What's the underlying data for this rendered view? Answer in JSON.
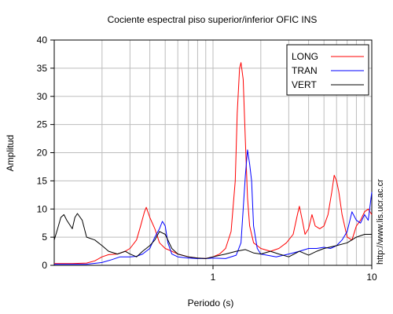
{
  "chart_data": {
    "type": "line",
    "title": "Cociente espectral piso superior/inferior  OFIC INS",
    "xlabel": "Periodo (s)",
    "ylabel": "Amplitud",
    "x_scale": "log",
    "xlim": [
      0.1,
      10
    ],
    "ylim": [
      0,
      40
    ],
    "grid": true,
    "x_ticks": [
      {
        "value": 1,
        "label": "1"
      },
      {
        "value": 10,
        "label": "10"
      }
    ],
    "y_ticks": [
      0,
      5,
      10,
      15,
      20,
      25,
      30,
      35,
      40
    ],
    "legend_position": "top-right",
    "series": [
      {
        "name": "LONG",
        "color": "#ff0000",
        "points": [
          [
            0.1,
            0.3
          ],
          [
            0.13,
            0.3
          ],
          [
            0.16,
            0.4
          ],
          [
            0.18,
            0.8
          ],
          [
            0.2,
            1.5
          ],
          [
            0.22,
            1.9
          ],
          [
            0.25,
            2.0
          ],
          [
            0.28,
            2.5
          ],
          [
            0.3,
            3.0
          ],
          [
            0.33,
            4.5
          ],
          [
            0.35,
            7.0
          ],
          [
            0.37,
            9.5
          ],
          [
            0.38,
            10.3
          ],
          [
            0.4,
            8.5
          ],
          [
            0.43,
            6.5
          ],
          [
            0.46,
            4.0
          ],
          [
            0.5,
            3.0
          ],
          [
            0.55,
            2.5
          ],
          [
            0.6,
            2.0
          ],
          [
            0.7,
            1.5
          ],
          [
            0.8,
            1.3
          ],
          [
            0.9,
            1.2
          ],
          [
            1.0,
            1.5
          ],
          [
            1.1,
            2.0
          ],
          [
            1.2,
            3.0
          ],
          [
            1.3,
            6.0
          ],
          [
            1.38,
            15.0
          ],
          [
            1.42,
            27.0
          ],
          [
            1.47,
            35.0
          ],
          [
            1.5,
            36.0
          ],
          [
            1.55,
            33.0
          ],
          [
            1.6,
            22.0
          ],
          [
            1.65,
            12.0
          ],
          [
            1.7,
            7.0
          ],
          [
            1.8,
            4.0
          ],
          [
            1.9,
            3.5
          ],
          [
            2.0,
            3.0
          ],
          [
            2.3,
            2.5
          ],
          [
            2.6,
            3.0
          ],
          [
            2.9,
            4.0
          ],
          [
            3.2,
            5.5
          ],
          [
            3.4,
            9.0
          ],
          [
            3.5,
            10.5
          ],
          [
            3.65,
            8.0
          ],
          [
            3.8,
            5.5
          ],
          [
            4.0,
            6.5
          ],
          [
            4.2,
            9.0
          ],
          [
            4.4,
            7.0
          ],
          [
            4.7,
            6.5
          ],
          [
            5.0,
            7.0
          ],
          [
            5.3,
            9.0
          ],
          [
            5.6,
            13.0
          ],
          [
            5.8,
            16.0
          ],
          [
            6.0,
            15.0
          ],
          [
            6.2,
            13.0
          ],
          [
            6.5,
            9.0
          ],
          [
            7.0,
            5.0
          ],
          [
            7.5,
            4.5
          ],
          [
            8.0,
            7.0
          ],
          [
            8.5,
            8.0
          ],
          [
            9.0,
            9.5
          ],
          [
            9.5,
            10.0
          ],
          [
            10.0,
            9.0
          ]
        ]
      },
      {
        "name": "TRAN",
        "color": "#0000ff",
        "points": [
          [
            0.1,
            0.2
          ],
          [
            0.13,
            0.2
          ],
          [
            0.16,
            0.2
          ],
          [
            0.2,
            0.5
          ],
          [
            0.23,
            1.0
          ],
          [
            0.26,
            1.5
          ],
          [
            0.3,
            1.5
          ],
          [
            0.33,
            1.6
          ],
          [
            0.36,
            2.0
          ],
          [
            0.4,
            3.0
          ],
          [
            0.43,
            5.0
          ],
          [
            0.46,
            6.5
          ],
          [
            0.48,
            7.8
          ],
          [
            0.5,
            7.0
          ],
          [
            0.52,
            4.0
          ],
          [
            0.55,
            2.0
          ],
          [
            0.6,
            1.5
          ],
          [
            0.7,
            1.3
          ],
          [
            0.8,
            1.2
          ],
          [
            0.9,
            1.2
          ],
          [
            1.0,
            1.3
          ],
          [
            1.2,
            1.2
          ],
          [
            1.4,
            1.8
          ],
          [
            1.5,
            4.0
          ],
          [
            1.55,
            10.0
          ],
          [
            1.6,
            16.0
          ],
          [
            1.65,
            20.5
          ],
          [
            1.7,
            18.0
          ],
          [
            1.75,
            15.0
          ],
          [
            1.8,
            7.0
          ],
          [
            1.9,
            3.0
          ],
          [
            2.0,
            2.0
          ],
          [
            2.5,
            1.5
          ],
          [
            3.0,
            2.0
          ],
          [
            3.5,
            2.5
          ],
          [
            4.0,
            3.0
          ],
          [
            4.5,
            3.0
          ],
          [
            5.0,
            3.2
          ],
          [
            5.5,
            3.0
          ],
          [
            6.0,
            3.5
          ],
          [
            6.5,
            4.5
          ],
          [
            7.0,
            6.0
          ],
          [
            7.5,
            9.5
          ],
          [
            8.0,
            8.0
          ],
          [
            8.5,
            7.5
          ],
          [
            9.0,
            9.0
          ],
          [
            9.5,
            8.0
          ],
          [
            10.0,
            13.0
          ]
        ]
      },
      {
        "name": "VERT",
        "color": "#000000",
        "points": [
          [
            0.1,
            4.5
          ],
          [
            0.105,
            6.5
          ],
          [
            0.11,
            8.5
          ],
          [
            0.115,
            9.0
          ],
          [
            0.12,
            8.0
          ],
          [
            0.13,
            6.5
          ],
          [
            0.135,
            8.5
          ],
          [
            0.14,
            9.2
          ],
          [
            0.15,
            8.0
          ],
          [
            0.16,
            5.0
          ],
          [
            0.18,
            4.5
          ],
          [
            0.2,
            3.5
          ],
          [
            0.22,
            2.5
          ],
          [
            0.25,
            2.0
          ],
          [
            0.28,
            2.5
          ],
          [
            0.3,
            2.0
          ],
          [
            0.33,
            1.5
          ],
          [
            0.36,
            2.5
          ],
          [
            0.4,
            3.5
          ],
          [
            0.43,
            4.5
          ],
          [
            0.46,
            6.0
          ],
          [
            0.5,
            5.5
          ],
          [
            0.55,
            3.0
          ],
          [
            0.6,
            2.0
          ],
          [
            0.7,
            1.5
          ],
          [
            0.8,
            1.3
          ],
          [
            0.9,
            1.2
          ],
          [
            1.0,
            1.5
          ],
          [
            1.2,
            2.0
          ],
          [
            1.4,
            2.5
          ],
          [
            1.6,
            2.8
          ],
          [
            1.8,
            2.2
          ],
          [
            2.0,
            2.0
          ],
          [
            2.3,
            2.5
          ],
          [
            2.6,
            2.0
          ],
          [
            3.0,
            1.5
          ],
          [
            3.5,
            2.5
          ],
          [
            4.0,
            1.8
          ],
          [
            4.5,
            2.5
          ],
          [
            5.0,
            3.0
          ],
          [
            6.0,
            3.5
          ],
          [
            7.0,
            4.0
          ],
          [
            8.0,
            5.0
          ],
          [
            9.0,
            5.5
          ],
          [
            10.0,
            5.5
          ]
        ]
      }
    ]
  },
  "watermark": "http://www.lis.ucr.ac.cr"
}
